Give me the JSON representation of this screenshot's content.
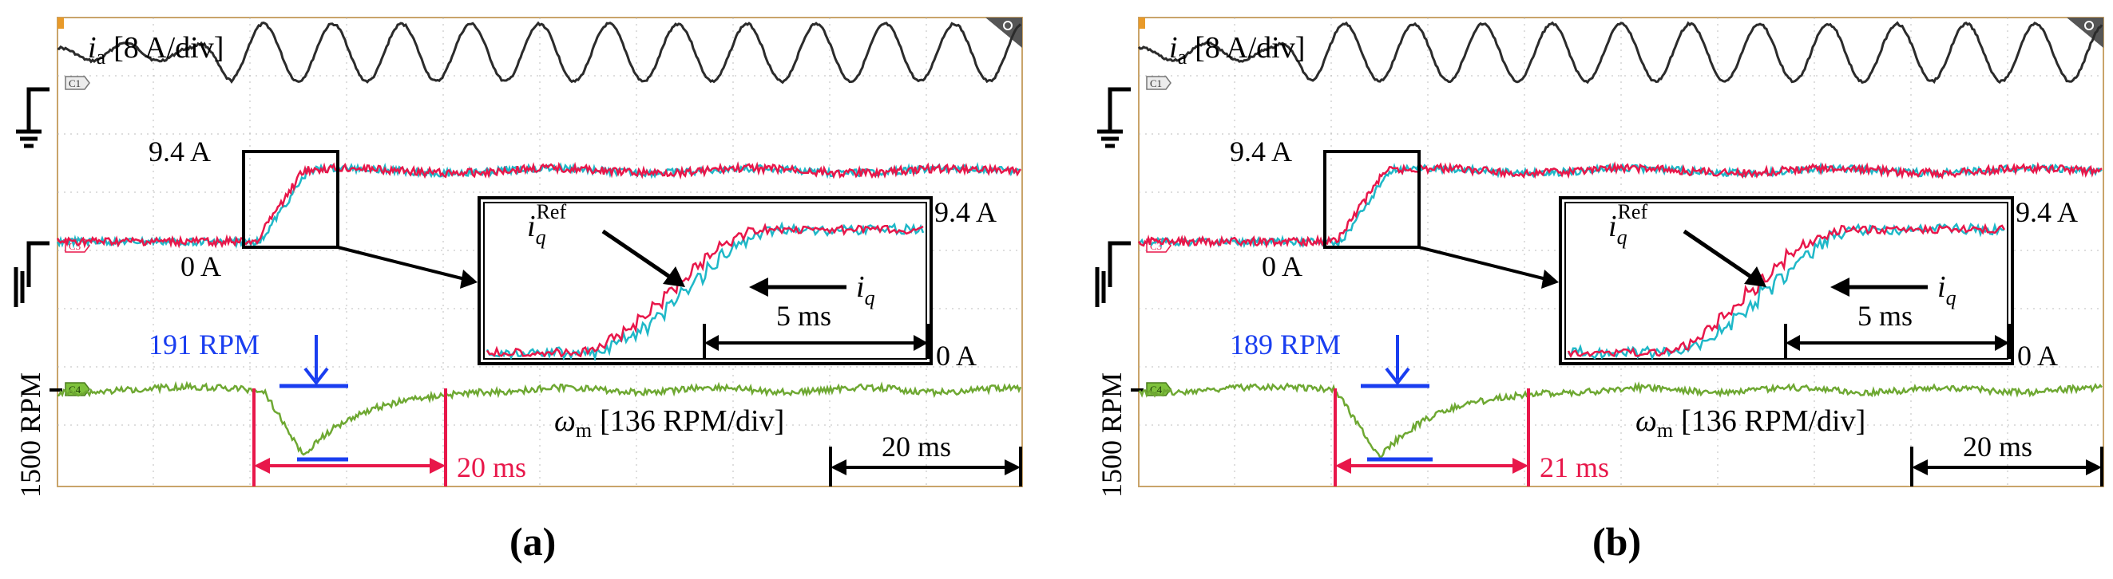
{
  "chart_data": [
    {
      "type": "line",
      "panel_label": "(a)",
      "channel_markers": [
        "C1",
        "C3",
        "C4"
      ],
      "series": [
        {
          "name": "i_a",
          "label_main": "i",
          "label_sub": "a",
          "label_scale": "[8 A/div]",
          "color": "#2b2b2b",
          "description": "sinusoidal phase current, amplitude grows after step",
          "cycles": 12
        },
        {
          "name": "i_q^Ref",
          "label_main": "i",
          "label_sub": "q",
          "label_sup": "Ref",
          "color": "#e8174a",
          "step_from": 0,
          "step_to": 9.4,
          "units": "A"
        },
        {
          "name": "i_q",
          "label_main": "i",
          "label_sub": "q",
          "color": "#1fb8c8",
          "step_from": 0,
          "step_to": 9.4,
          "units": "A"
        },
        {
          "name": "omega_m",
          "label_main": "ω",
          "label_sub": "m",
          "label_scale": "[136 RPM/div]",
          "color": "#6ea832",
          "baseline_rpm": 1500,
          "dip_rpm": 191
        }
      ],
      "annotations": {
        "current_high": "9.4 A",
        "current_low": "0 A",
        "inset_high": "9.4 A",
        "inset_low": "0 A",
        "inset_time": "5 ms",
        "speed_dip": "191 RPM",
        "recovery_time": "20 ms",
        "time_div": "20 ms",
        "speed_axis": "1500 RPM"
      }
    },
    {
      "type": "line",
      "panel_label": "(b)",
      "channel_markers": [
        "C1",
        "C3",
        "C4"
      ],
      "series": [
        {
          "name": "i_a",
          "label_main": "i",
          "label_sub": "a",
          "label_scale": "[8 A/div]",
          "color": "#2b2b2b",
          "description": "sinusoidal phase current, amplitude grows after step",
          "cycles": 12
        },
        {
          "name": "i_q^Ref",
          "label_main": "i",
          "label_sub": "q",
          "label_sup": "Ref",
          "color": "#e8174a",
          "step_from": 0,
          "step_to": 9.4,
          "units": "A"
        },
        {
          "name": "i_q",
          "label_main": "i",
          "label_sub": "q",
          "color": "#1fb8c8",
          "step_from": 0,
          "step_to": 9.4,
          "units": "A"
        },
        {
          "name": "omega_m",
          "label_main": "ω",
          "label_sub": "m",
          "label_scale": "[136 RPM/div]",
          "color": "#6ea832",
          "baseline_rpm": 1500,
          "dip_rpm": 189
        }
      ],
      "annotations": {
        "current_high": "9.4 A",
        "current_low": "0 A",
        "inset_high": "9.4 A",
        "inset_low": "0 A",
        "inset_time": "5 ms",
        "speed_dip": "189 RPM",
        "recovery_time": "21 ms",
        "time_div": "20 ms",
        "speed_axis": "1500 RPM"
      }
    }
  ]
}
